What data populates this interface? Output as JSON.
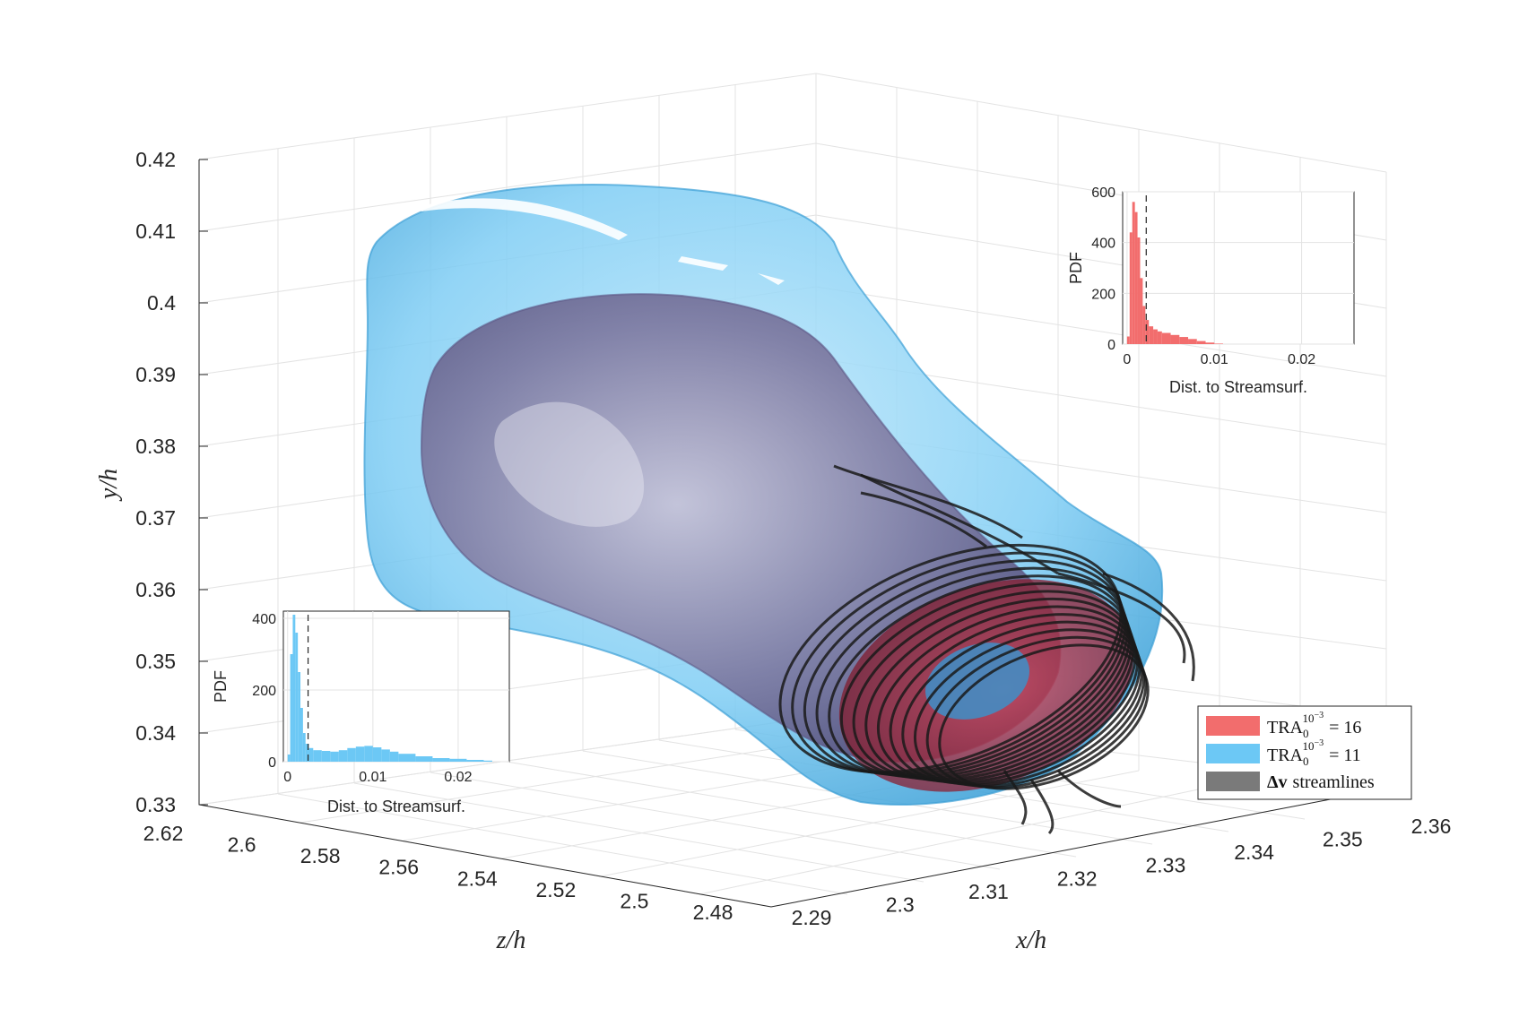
{
  "chart_data": [
    {
      "type": "3d-surface",
      "xlabel": "x/h",
      "ylabel": "y/h",
      "zlabel": "z/h",
      "x_ticks": [
        "2.29",
        "2.3",
        "2.31",
        "2.32",
        "2.33",
        "2.34",
        "2.35",
        "2.36"
      ],
      "y_ticks": [
        "0.33",
        "0.34",
        "0.35",
        "0.36",
        "0.37",
        "0.38",
        "0.39",
        "0.4",
        "0.41",
        "0.42"
      ],
      "z_ticks": [
        "2.62",
        "2.6",
        "2.58",
        "2.56",
        "2.54",
        "2.52",
        "2.5",
        "2.48"
      ],
      "xlim": [
        2.29,
        2.36
      ],
      "ylim": [
        0.33,
        0.42
      ],
      "zlim": [
        2.48,
        2.62
      ],
      "grid": true,
      "legend_position": "bottom-right",
      "legend": [
        {
          "label_base": "TRA",
          "label_sub": "0",
          "label_sup": "10",
          "label_sup_exp": "−3",
          "label_tail": "= 16",
          "color": "#f26d6d"
        },
        {
          "label_base": "TRA",
          "label_sub": "0",
          "label_sup": "10",
          "label_sup_exp": "−3",
          "label_tail": "= 11",
          "color": "#6cc8f5"
        },
        {
          "label_bold": "Δv",
          "label_tail": "streamlines",
          "color": "#7a7a7a"
        }
      ]
    },
    {
      "type": "histogram",
      "position": "top-right-inset",
      "color": "#f26d6d",
      "ylabel": "PDF",
      "xlabel": "Dist. to Streamsurf.",
      "x_ticks": [
        "0",
        "0.01",
        "0.02"
      ],
      "y_ticks": [
        "0",
        "200",
        "400",
        "600"
      ],
      "xlim": [
        -0.0005,
        0.026
      ],
      "ylim": [
        0,
        600
      ],
      "dashed_line_x": 0.0022,
      "bins": [
        [
          0.0,
          30
        ],
        [
          0.0003,
          440
        ],
        [
          0.0006,
          560
        ],
        [
          0.0009,
          520
        ],
        [
          0.0012,
          420
        ],
        [
          0.0015,
          260
        ],
        [
          0.0018,
          150
        ],
        [
          0.0021,
          95
        ],
        [
          0.0025,
          70
        ],
        [
          0.003,
          58
        ],
        [
          0.0035,
          50
        ],
        [
          0.004,
          44
        ],
        [
          0.005,
          36
        ],
        [
          0.006,
          28
        ],
        [
          0.007,
          20
        ],
        [
          0.008,
          12
        ],
        [
          0.009,
          6
        ],
        [
          0.01,
          2
        ],
        [
          0.011,
          0
        ]
      ]
    },
    {
      "type": "histogram",
      "position": "bottom-left-inset",
      "color": "#6cc8f5",
      "ylabel": "PDF",
      "xlabel": "Dist. to Streamsurf.",
      "x_ticks": [
        "0",
        "0.01",
        "0.02"
      ],
      "y_ticks": [
        "0",
        "200",
        "400"
      ],
      "xlim": [
        -0.0005,
        0.026
      ],
      "ylim": [
        0,
        420
      ],
      "dashed_line_x": 0.0024,
      "bins": [
        [
          0.0,
          20
        ],
        [
          0.0003,
          300
        ],
        [
          0.0006,
          410
        ],
        [
          0.0009,
          360
        ],
        [
          0.0012,
          250
        ],
        [
          0.0015,
          150
        ],
        [
          0.0018,
          80
        ],
        [
          0.0021,
          50
        ],
        [
          0.0025,
          38
        ],
        [
          0.003,
          32
        ],
        [
          0.004,
          30
        ],
        [
          0.005,
          28
        ],
        [
          0.006,
          32
        ],
        [
          0.007,
          38
        ],
        [
          0.008,
          42
        ],
        [
          0.009,
          44
        ],
        [
          0.01,
          40
        ],
        [
          0.011,
          34
        ],
        [
          0.012,
          28
        ],
        [
          0.013,
          22
        ],
        [
          0.015,
          15
        ],
        [
          0.017,
          10
        ],
        [
          0.019,
          8
        ],
        [
          0.021,
          5
        ],
        [
          0.023,
          3
        ],
        [
          0.024,
          0
        ]
      ]
    }
  ]
}
